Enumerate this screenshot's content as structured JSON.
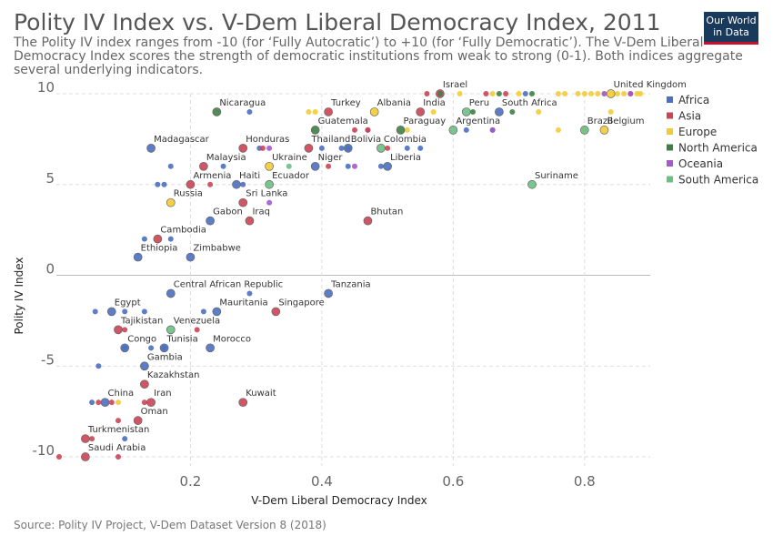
{
  "header": {
    "title": "Polity IV Index vs. V-Dem Liberal Democracy Index, 2011",
    "subtitle": "The Polity IV index ranges from -10 (for ‘Fully Autocratic’) to +10 (for ‘Fully Democratic’). The V-Dem Liberal Democracy Index scores the strength of democratic institutions from weak to strong (0-1). Both indices aggregate several underlying indicators.",
    "logo": "Our World in Data"
  },
  "footer": {
    "source": "Source: Polity IV Project, V-Dem Dataset Version 8 (2018)"
  },
  "chart_data": {
    "type": "scatter",
    "xlabel": "V-Dem Liberal Democracy Index",
    "ylabel": "Polity IV Index",
    "xlim": [
      0.0,
      0.9
    ],
    "ylim": [
      -10.5,
      10
    ],
    "xticks": [
      0.2,
      0.4,
      0.6,
      0.8
    ],
    "xtick_labels": [
      "0.2",
      "0.4",
      "0.6",
      "0.8"
    ],
    "yticks": [
      -10,
      -5,
      0,
      5,
      10
    ],
    "ytick_labels": [
      "-10",
      "-5",
      "0",
      "5",
      "10"
    ],
    "grid": true,
    "legend_position": "right",
    "series": [
      {
        "name": "Africa",
        "color": "#4C6FC1",
        "points": [
          {
            "x": 0.05,
            "y": -7
          },
          {
            "x": 0.06,
            "y": -5
          },
          {
            "x": 0.055,
            "y": -2
          },
          {
            "x": 0.1,
            "y": -9
          },
          {
            "x": 0.1,
            "y": -2
          },
          {
            "x": 0.13,
            "y": -2
          },
          {
            "x": 0.1,
            "y": -4
          },
          {
            "x": 0.14,
            "y": -4
          },
          {
            "x": 0.16,
            "y": -4
          },
          {
            "x": 0.22,
            "y": -2
          },
          {
            "x": 0.29,
            "y": -1
          },
          {
            "x": 0.13,
            "y": 2
          },
          {
            "x": 0.17,
            "y": 2
          },
          {
            "x": 0.15,
            "y": 5
          },
          {
            "x": 0.16,
            "y": 5
          },
          {
            "x": 0.17,
            "y": 6
          },
          {
            "x": 0.25,
            "y": 6
          },
          {
            "x": 0.28,
            "y": 5
          },
          {
            "x": 0.29,
            "y": 9
          },
          {
            "x": 0.4,
            "y": 7
          },
          {
            "x": 0.44,
            "y": 7
          },
          {
            "x": 0.47,
            "y": 8
          },
          {
            "x": 0.49,
            "y": 6
          },
          {
            "x": 0.53,
            "y": 7
          },
          {
            "x": 0.55,
            "y": 7
          },
          {
            "x": 0.62,
            "y": 8
          },
          {
            "x": 0.66,
            "y": 8
          },
          {
            "x": 0.71,
            "y": 10
          },
          {
            "x": 0.43,
            "y": 7
          },
          {
            "x": 0.305,
            "y": 7
          },
          {
            "x": 0.44,
            "y": 6
          },
          {
            "x": 0.07,
            "y": -7,
            "label": "China"
          },
          {
            "x": 0.08,
            "y": -2,
            "label": "Egypt"
          },
          {
            "x": 0.1,
            "y": -4,
            "label": "Congo"
          },
          {
            "x": 0.13,
            "y": -5,
            "label": "Gambia"
          },
          {
            "x": 0.16,
            "y": -4,
            "label": "Tunisia"
          },
          {
            "x": 0.23,
            "y": -4,
            "label": "Morocco"
          },
          {
            "x": 0.24,
            "y": -2,
            "label": "Mauritania"
          },
          {
            "x": 0.17,
            "y": -1,
            "label": "Central African Republic"
          },
          {
            "x": 0.12,
            "y": 1,
            "label": "Ethiopia"
          },
          {
            "x": 0.2,
            "y": 1,
            "label": "Zimbabwe"
          },
          {
            "x": 0.23,
            "y": 3,
            "label": "Gabon"
          },
          {
            "x": 0.27,
            "y": 5,
            "label": "Haiti"
          },
          {
            "x": 0.14,
            "y": 7,
            "label": "Madagascar"
          },
          {
            "x": 0.41,
            "y": -1,
            "label": "Tanzania"
          },
          {
            "x": 0.39,
            "y": 6,
            "label": "Niger"
          },
          {
            "x": 0.5,
            "y": 6,
            "label": "Liberia"
          },
          {
            "x": 0.44,
            "y": 7,
            "label": "Bolivia"
          },
          {
            "x": 0.67,
            "y": 9,
            "label": "South Africa"
          }
        ]
      },
      {
        "name": "Asia",
        "color": "#CC4455",
        "points": [
          {
            "x": 0.0,
            "y": -10
          },
          {
            "x": 0.05,
            "y": -9
          },
          {
            "x": 0.06,
            "y": -7
          },
          {
            "x": 0.08,
            "y": -7
          },
          {
            "x": 0.09,
            "y": -8
          },
          {
            "x": 0.1,
            "y": -3
          },
          {
            "x": 0.13,
            "y": -7
          },
          {
            "x": 0.09,
            "y": -10
          },
          {
            "x": 0.21,
            "y": -3
          },
          {
            "x": 0.23,
            "y": 5
          },
          {
            "x": 0.31,
            "y": 7
          },
          {
            "x": 0.41,
            "y": 6
          },
          {
            "x": 0.45,
            "y": 8
          },
          {
            "x": 0.47,
            "y": 8
          },
          {
            "x": 0.5,
            "y": 7
          },
          {
            "x": 0.56,
            "y": 10
          },
          {
            "x": 0.65,
            "y": 10
          },
          {
            "x": 0.68,
            "y": 10
          },
          {
            "x": 0.87,
            "y": 10
          },
          {
            "x": 0.04,
            "y": -9,
            "label": "Turkmenistan"
          },
          {
            "x": 0.04,
            "y": -10,
            "label": "Saudi Arabia"
          },
          {
            "x": 0.09,
            "y": -3,
            "label": "Tajikistan"
          },
          {
            "x": 0.12,
            "y": -8,
            "label": "Oman"
          },
          {
            "x": 0.13,
            "y": -6,
            "label": "Kazakhstan"
          },
          {
            "x": 0.14,
            "y": -7,
            "label": "Iran"
          },
          {
            "x": 0.15,
            "y": 2,
            "label": "Cambodia"
          },
          {
            "x": 0.2,
            "y": 5,
            "label": "Armenia"
          },
          {
            "x": 0.22,
            "y": 6,
            "label": "Malaysia"
          },
          {
            "x": 0.28,
            "y": 4,
            "label": "Sri Lanka"
          },
          {
            "x": 0.29,
            "y": 3,
            "label": "Iraq"
          },
          {
            "x": 0.28,
            "y": -7,
            "label": "Kuwait"
          },
          {
            "x": 0.33,
            "y": -2,
            "label": "Singapore"
          },
          {
            "x": 0.38,
            "y": 7,
            "label": "Thailand"
          },
          {
            "x": 0.47,
            "y": 3,
            "label": "Bhutan"
          },
          {
            "x": 0.41,
            "y": 9,
            "label": "Turkey"
          },
          {
            "x": 0.55,
            "y": 9,
            "label": "India"
          },
          {
            "x": 0.58,
            "y": 10,
            "label": "Israel"
          },
          {
            "x": 0.28,
            "y": 7,
            "label": "Honduras"
          }
        ]
      },
      {
        "name": "Europe",
        "color": "#F2CC35",
        "points": [
          {
            "x": 0.09,
            "y": -7
          },
          {
            "x": 0.38,
            "y": 9
          },
          {
            "x": 0.39,
            "y": 9
          },
          {
            "x": 0.53,
            "y": 8
          },
          {
            "x": 0.57,
            "y": 9
          },
          {
            "x": 0.61,
            "y": 10
          },
          {
            "x": 0.66,
            "y": 10
          },
          {
            "x": 0.7,
            "y": 10
          },
          {
            "x": 0.73,
            "y": 9
          },
          {
            "x": 0.76,
            "y": 8
          },
          {
            "x": 0.76,
            "y": 10
          },
          {
            "x": 0.77,
            "y": 10
          },
          {
            "x": 0.79,
            "y": 10
          },
          {
            "x": 0.8,
            "y": 10
          },
          {
            "x": 0.81,
            "y": 10
          },
          {
            "x": 0.82,
            "y": 10
          },
          {
            "x": 0.83,
            "y": 10
          },
          {
            "x": 0.84,
            "y": 9
          },
          {
            "x": 0.85,
            "y": 10
          },
          {
            "x": 0.86,
            "y": 10
          },
          {
            "x": 0.88,
            "y": 10
          },
          {
            "x": 0.885,
            "y": 10
          },
          {
            "x": 0.8,
            "y": 8
          },
          {
            "x": 0.17,
            "y": 4,
            "label": "Russia"
          },
          {
            "x": 0.32,
            "y": 6,
            "label": "Ukraine"
          },
          {
            "x": 0.48,
            "y": 9,
            "label": "Albania"
          },
          {
            "x": 0.83,
            "y": 8,
            "label": "Belgium"
          },
          {
            "x": 0.84,
            "y": 10,
            "label": "United Kingdom"
          }
        ]
      },
      {
        "name": "North America",
        "color": "#3F7F45",
        "points": [
          {
            "x": 0.58,
            "y": 10
          },
          {
            "x": 0.63,
            "y": 9
          },
          {
            "x": 0.67,
            "y": 10
          },
          {
            "x": 0.69,
            "y": 9
          },
          {
            "x": 0.72,
            "y": 10
          },
          {
            "x": 0.24,
            "y": 9,
            "label": "Nicaragua"
          },
          {
            "x": 0.39,
            "y": 8,
            "label": "Guatemala"
          },
          {
            "x": 0.52,
            "y": 8,
            "label": "Paraguay"
          }
        ]
      },
      {
        "name": "Oceania",
        "color": "#A35ACB",
        "points": [
          {
            "x": 0.32,
            "y": 7
          },
          {
            "x": 0.45,
            "y": 6
          },
          {
            "x": 0.83,
            "y": 10
          },
          {
            "x": 0.87,
            "y": 10
          },
          {
            "x": 0.66,
            "y": 8
          },
          {
            "x": 0.32,
            "y": 4
          }
        ]
      },
      {
        "name": "South America",
        "color": "#6CC084",
        "points": [
          {
            "x": 0.35,
            "y": 6
          },
          {
            "x": 0.17,
            "y": -3,
            "label": "Venezuela"
          },
          {
            "x": 0.32,
            "y": 5,
            "label": "Ecuador"
          },
          {
            "x": 0.49,
            "y": 7,
            "label": "Colombia"
          },
          {
            "x": 0.6,
            "y": 8,
            "label": "Argentina"
          },
          {
            "x": 0.62,
            "y": 9,
            "label": "Peru"
          },
          {
            "x": 0.72,
            "y": 5,
            "label": "Suriname"
          },
          {
            "x": 0.8,
            "y": 8,
            "label": "Brazil"
          }
        ]
      }
    ]
  }
}
